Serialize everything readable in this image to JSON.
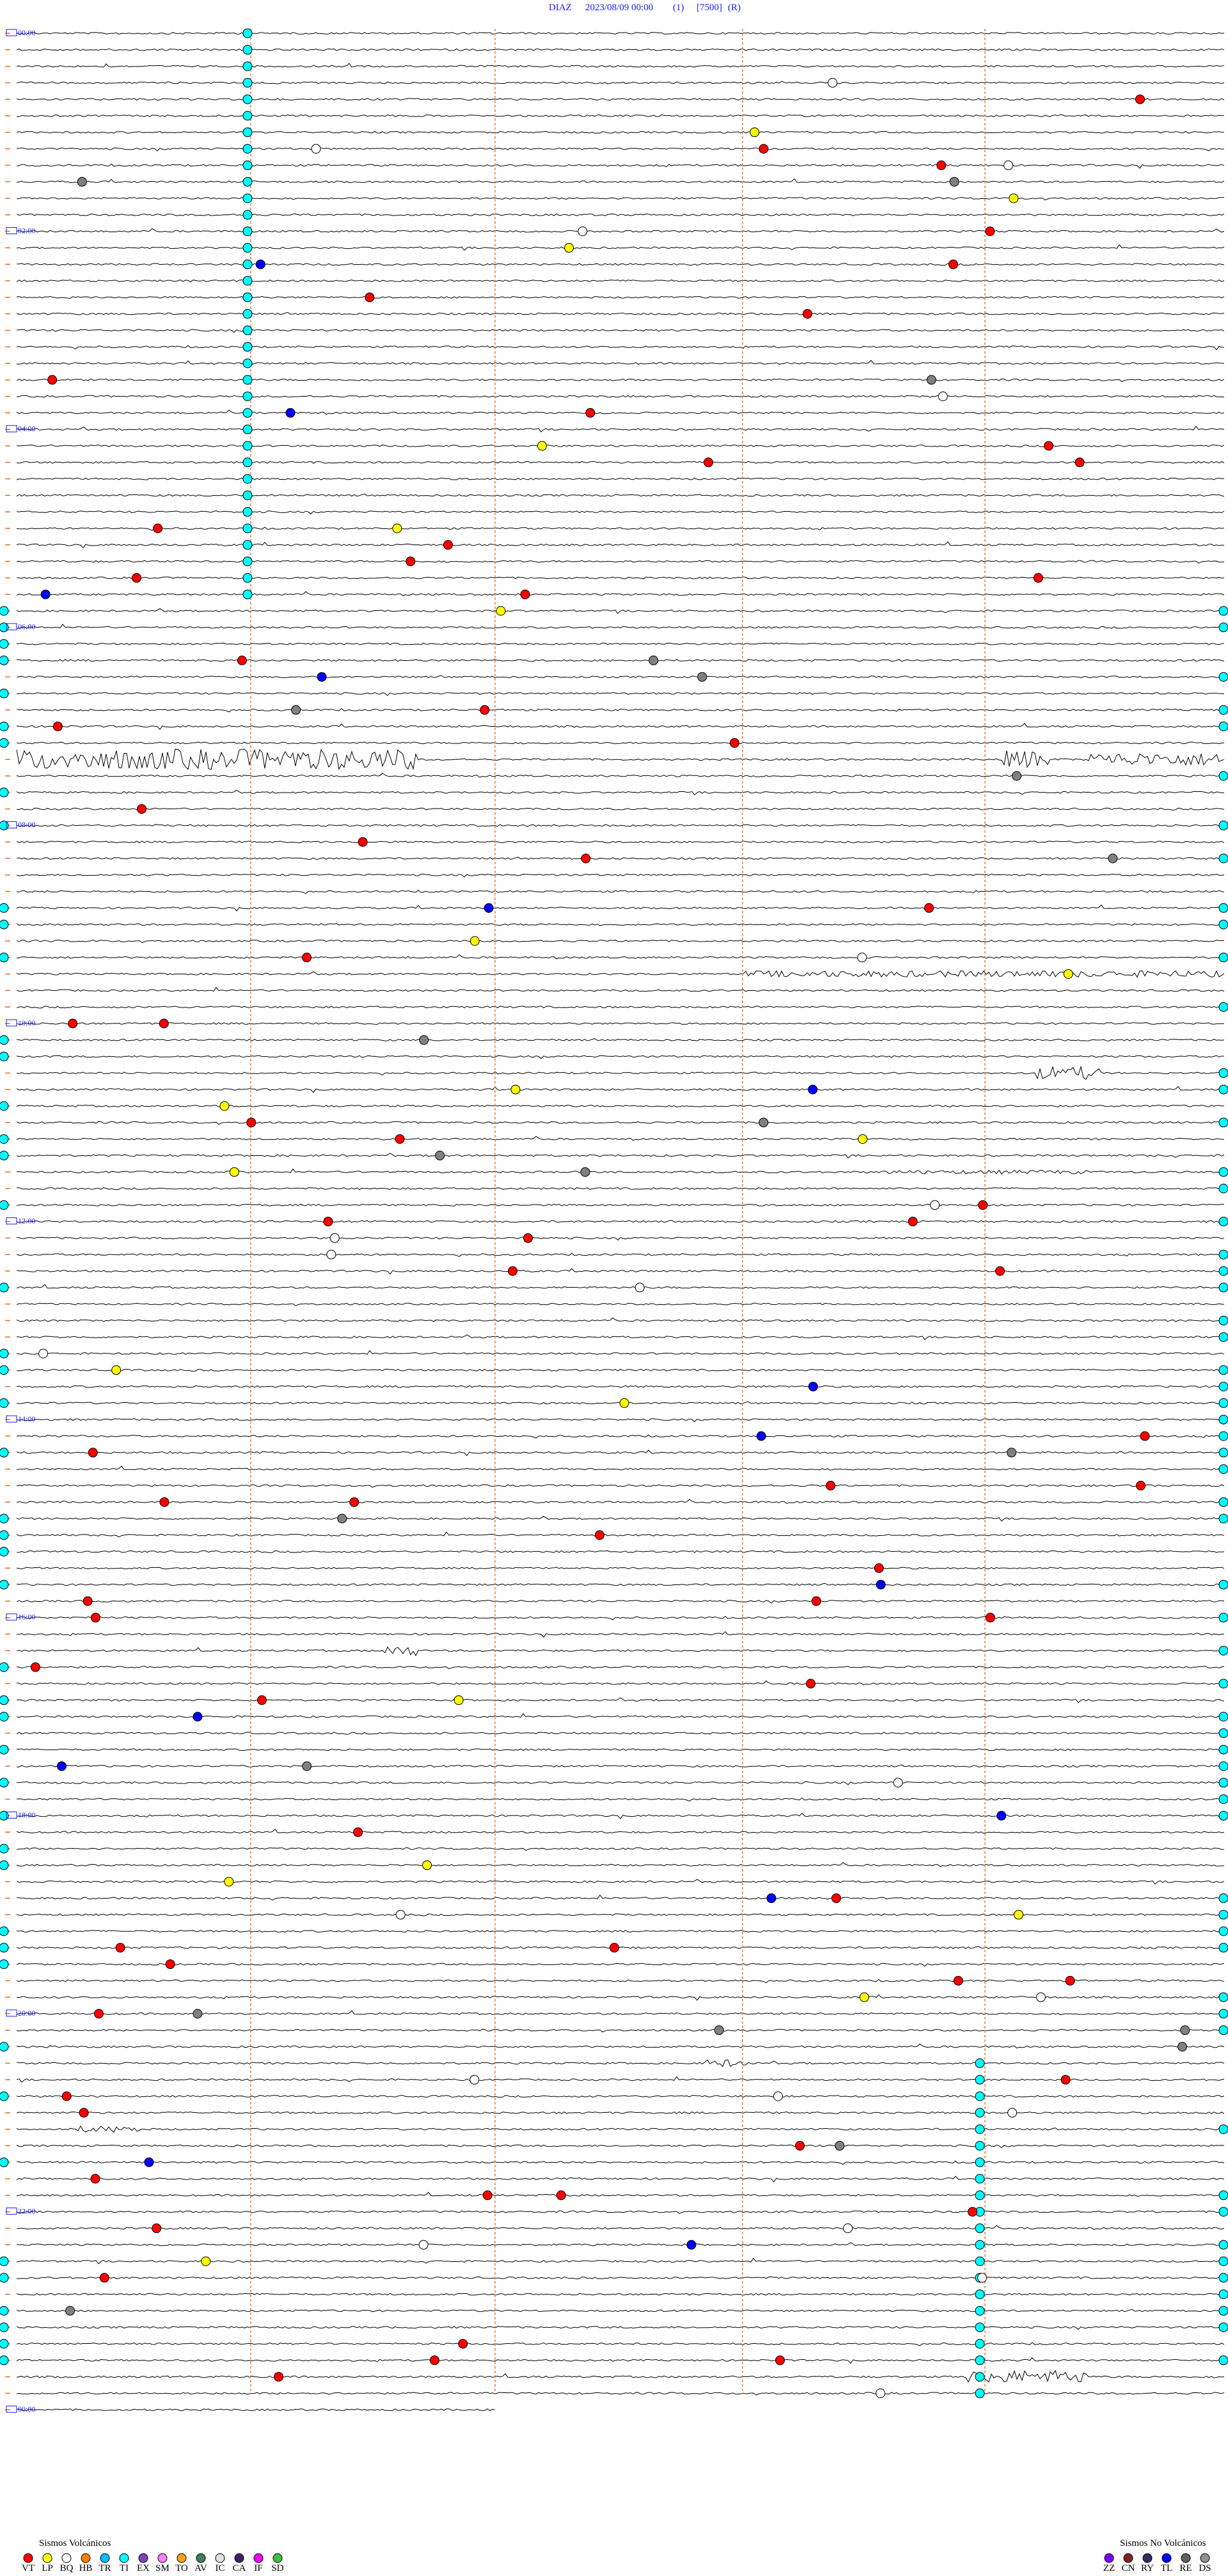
{
  "header": {
    "station": "DIAZ",
    "datetime": "2023/08/09 00:00",
    "gain": "(1)",
    "scale": "[7500]",
    "mode": "(R)"
  },
  "time_labels": [
    "00:00",
    "02:00",
    "04:00",
    "06:00",
    "08:00",
    "10:00",
    "12:00",
    "14:00",
    "16:00",
    "18:00",
    "20:00",
    "22:00",
    "00:00"
  ],
  "legend": {
    "volcanic": {
      "title": "Sismos Volcánicos",
      "types": [
        {
          "code": "VT",
          "color": "#ff0000"
        },
        {
          "code": "LP",
          "color": "#ffff00"
        },
        {
          "code": "BQ",
          "color": "#ffffff"
        },
        {
          "code": "HB",
          "color": "#ff8000"
        },
        {
          "code": "TR",
          "color": "#00bfff"
        },
        {
          "code": "TI",
          "color": "#00ffff"
        },
        {
          "code": "EX",
          "color": "#8040c0"
        },
        {
          "code": "SM",
          "color": "#ff80ff"
        },
        {
          "code": "TO",
          "color": "#ffa020"
        },
        {
          "code": "AV",
          "color": "#408060"
        },
        {
          "code": "IC",
          "color": "#e0e0e0"
        },
        {
          "code": "CA",
          "color": "#402060"
        },
        {
          "code": "IF",
          "color": "#ff00ff"
        },
        {
          "code": "SD",
          "color": "#40c040"
        }
      ]
    },
    "non_volcanic": {
      "title": "Sismos No Volcánicos",
      "types": [
        {
          "code": "ZZ",
          "color": "#8000ff"
        },
        {
          "code": "CN",
          "color": "#802020"
        },
        {
          "code": "RY",
          "color": "#303060"
        },
        {
          "code": "TL",
          "color": "#0000ff"
        },
        {
          "code": "RE",
          "color": "#606060"
        },
        {
          "code": "DS",
          "color": "#909090"
        }
      ]
    }
  }
}
